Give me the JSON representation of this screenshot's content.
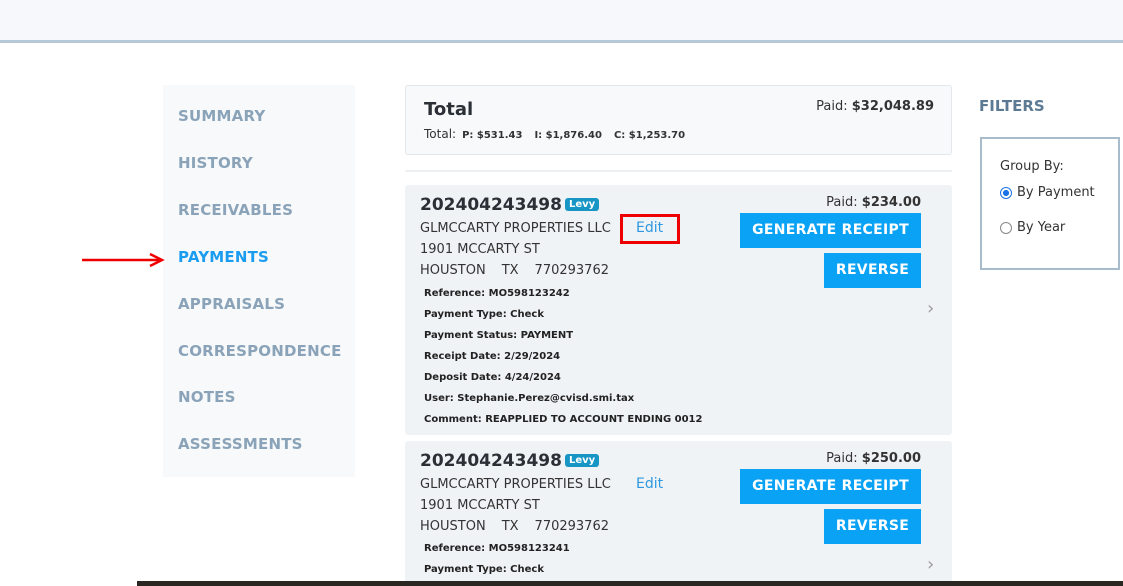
{
  "sidebar": {
    "items": [
      {
        "label": "SUMMARY"
      },
      {
        "label": "HISTORY"
      },
      {
        "label": "RECEIVABLES"
      },
      {
        "label": "PAYMENTS",
        "active": true
      },
      {
        "label": "APPRAISALS"
      },
      {
        "label": "CORRESPONDENCE"
      },
      {
        "label": "NOTES"
      },
      {
        "label": "ASSESSMENTS"
      }
    ]
  },
  "total": {
    "title": "Total",
    "label": "Total:",
    "p": "P: $531.43",
    "i": "I: $1,876.40",
    "c": "C: $1,253.70",
    "paid_label": "Paid:",
    "paid_value": "$32,048.89"
  },
  "payments": [
    {
      "number": "202404243498",
      "badge": "Levy",
      "name": "GLMCCARTY PROPERTIES LLC",
      "edit": "Edit",
      "address": "1901 MCCARTY ST",
      "city": "HOUSTON",
      "state": "TX",
      "zip": "770293762",
      "paid_label": "Paid:",
      "paid_value": "$234.00",
      "generate": "GENERATE RECEIPT",
      "reverse": "REVERSE",
      "details": [
        "Reference: MO598123242",
        "Payment Type: Check",
        "Payment Status: PAYMENT",
        "Receipt Date: 2/29/2024",
        "Deposit Date: 4/24/2024",
        "User: Stephanie.Perez@cvisd.smi.tax",
        "Comment: REAPPLIED TO ACCOUNT ENDING 0012"
      ]
    },
    {
      "number": "202404243498",
      "badge": "Levy",
      "name": "GLMCCARTY PROPERTIES LLC",
      "edit": "Edit",
      "address": "1901 MCCARTY ST",
      "city": "HOUSTON",
      "state": "TX",
      "zip": "770293762",
      "paid_label": "Paid:",
      "paid_value": "$250.00",
      "generate": "GENERATE RECEIPT",
      "reverse": "REVERSE",
      "details": [
        "Reference: MO598123241",
        "Payment Type: Check"
      ]
    }
  ],
  "filters": {
    "title": "FILTERS",
    "group_by": "Group By:",
    "options": [
      {
        "label": "By Payment",
        "selected": true
      },
      {
        "label": "By Year",
        "selected": false
      }
    ]
  },
  "colors": {
    "accent": "#0aa2f5",
    "nav_active": "#1a9cf0",
    "nav": "#8aa3b8",
    "badge": "#1795c5",
    "annotation": "#e00000"
  }
}
